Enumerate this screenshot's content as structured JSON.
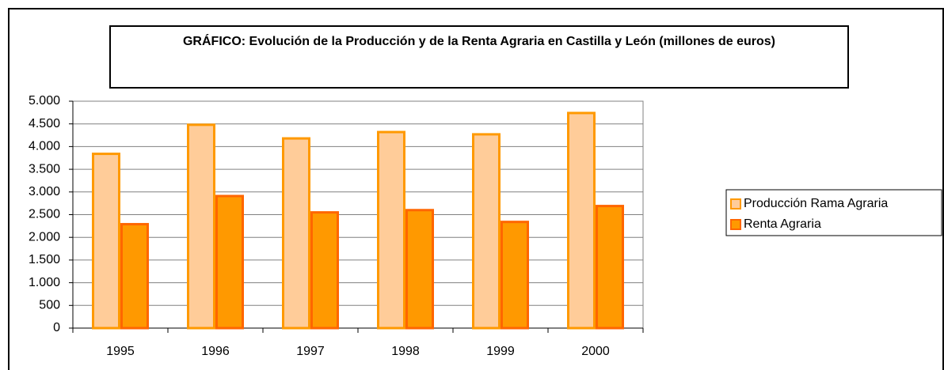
{
  "chart_data": {
    "type": "bar",
    "title": "GRÁFICO: Evolución de la Producción y de la Renta Agraria en Castilla y León (millones de euros)",
    "categories": [
      "1995",
      "1996",
      "1997",
      "1998",
      "1999",
      "2000"
    ],
    "series": [
      {
        "name": "Producción Rama Agraria",
        "color": "#FFCC99",
        "values": [
          3840,
          4480,
          4180,
          4320,
          4270,
          4740
        ]
      },
      {
        "name": "Renta Agraria",
        "color": "#FF9900",
        "values": [
          2290,
          2910,
          2550,
          2600,
          2340,
          2690
        ]
      }
    ],
    "ylim": [
      0,
      5000
    ],
    "yticks": [
      0,
      500,
      {
        "value": 1000,
        "label": "1.000"
      },
      {
        "value": 1500,
        "label": "1.500"
      },
      {
        "value": 2000,
        "label": "2.000"
      },
      {
        "value": 2500,
        "label": "2.500"
      },
      {
        "value": 3000,
        "label": "3.000"
      },
      {
        "value": 3500,
        "label": "3.500"
      },
      {
        "value": 4000,
        "label": "4.000"
      },
      {
        "value": 4500,
        "label": "4.500"
      },
      {
        "value": 5000,
        "label": "5.000"
      }
    ],
    "grid": true,
    "legend": "right"
  }
}
